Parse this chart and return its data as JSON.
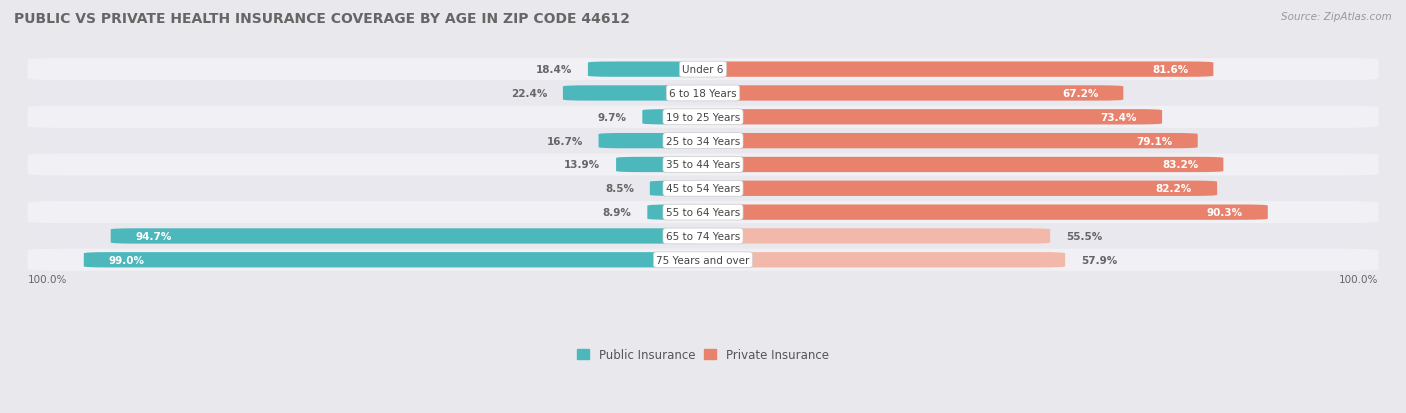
{
  "title": "PUBLIC VS PRIVATE HEALTH INSURANCE COVERAGE BY AGE IN ZIP CODE 44612",
  "source": "Source: ZipAtlas.com",
  "categories": [
    "Under 6",
    "6 to 18 Years",
    "19 to 25 Years",
    "25 to 34 Years",
    "35 to 44 Years",
    "45 to 54 Years",
    "55 to 64 Years",
    "65 to 74 Years",
    "75 Years and over"
  ],
  "public_values": [
    18.4,
    22.4,
    9.7,
    16.7,
    13.9,
    8.5,
    8.9,
    94.7,
    99.0
  ],
  "private_values": [
    81.6,
    67.2,
    73.4,
    79.1,
    83.2,
    82.2,
    90.3,
    55.5,
    57.9
  ],
  "public_color_strong": "#4db8bc",
  "public_color_light": "#4db8bc",
  "private_color_strong": "#e8826d",
  "private_color_light": "#f2b8aa",
  "row_bg_odd": "#e8e8ed",
  "row_bg_even": "#dddde5",
  "fig_bg": "#e8e8ed",
  "title_color": "#666666",
  "value_text_inside": "#ffffff",
  "value_text_outside": "#666666",
  "legend_public": "Public Insurance",
  "legend_private": "Private Insurance",
  "bottom_label": "100.0%"
}
